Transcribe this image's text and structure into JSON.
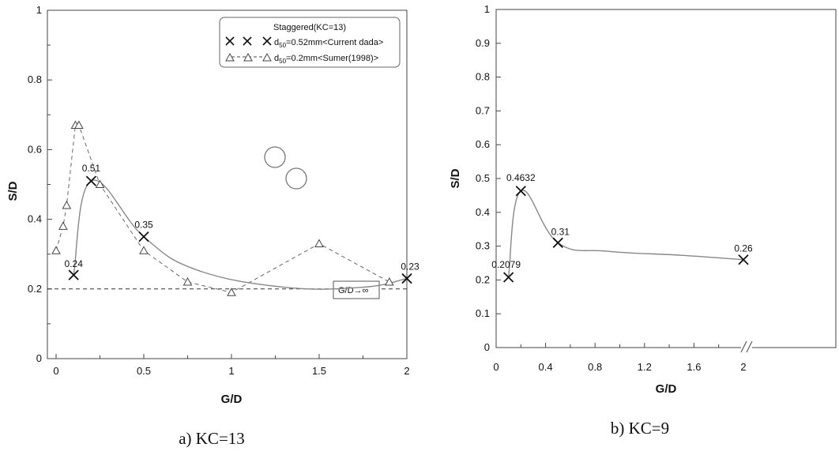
{
  "chart_data": [
    {
      "type": "line",
      "caption": "a) KC=13",
      "xlabel": "G/D",
      "ylabel": "S/D",
      "xlim": [
        -0.05,
        2
      ],
      "ylim": [
        0,
        1
      ],
      "x_ticks": [
        "0",
        "0.5",
        "1",
        "1.5",
        "2"
      ],
      "y_ticks": [
        "0",
        "0.2",
        "0.4",
        "0.6",
        "0.8",
        "1"
      ],
      "grid": false,
      "legend": {
        "title": "Staggered(KC=13)",
        "placement": "top-right",
        "entries": [
          "d50=0.52mm<Current dada>",
          "d50=0.2mm<Sumer(1998)>"
        ]
      },
      "series": [
        {
          "name": "d50=0.52mm<Current dada>",
          "marker": "x",
          "line": "solid",
          "x": [
            0.1,
            0.2,
            0.5,
            2.0
          ],
          "y": [
            0.24,
            0.51,
            0.35,
            0.23
          ],
          "labels": [
            "0.24",
            "0.51",
            "0.35",
            "0.23"
          ]
        },
        {
          "name": "d50=0.2mm<Sumer(1998)>",
          "marker": "triangle",
          "line": "dashed",
          "x": [
            0.0,
            0.04,
            0.06,
            0.11,
            0.13,
            0.25,
            0.5,
            0.75,
            1.0,
            1.5,
            1.9
          ],
          "y": [
            0.31,
            0.38,
            0.44,
            0.67,
            0.67,
            0.5,
            0.31,
            0.22,
            0.19,
            0.33,
            0.22
          ]
        }
      ],
      "reference_line": {
        "y": 0.2,
        "style": "dashed",
        "label": "G/D→∞"
      }
    },
    {
      "type": "line",
      "caption": "b) KC=9",
      "xlabel": "G/D",
      "ylabel": "S/D",
      "xlim": [
        0,
        2.4
      ],
      "ylim": [
        0,
        1
      ],
      "x_ticks": [
        "0",
        "0.4",
        "0.8",
        "1.2",
        "1.6",
        "2"
      ],
      "y_ticks": [
        "0",
        "0.1",
        "0.2",
        "0.3",
        "0.4",
        "0.5",
        "0.6",
        "0.7",
        "0.8",
        "0.9",
        "1"
      ],
      "grid": false,
      "series": [
        {
          "marker": "x",
          "line": "solid",
          "x": [
            0.1,
            0.2,
            0.5,
            2.0
          ],
          "y": [
            0.2079,
            0.4632,
            0.31,
            0.26
          ],
          "labels": [
            "0.2079",
            "0.4632",
            "0.31",
            "0.26"
          ]
        }
      ],
      "axis_break_at_x": 2.0
    }
  ]
}
